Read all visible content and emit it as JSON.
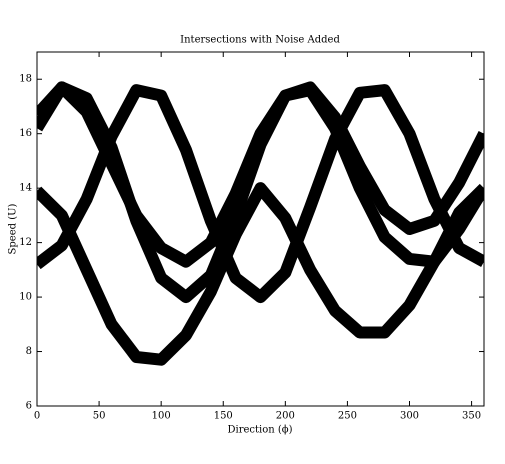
{
  "chart_data": {
    "type": "line",
    "title": "Intersections with Noise Added",
    "x_label": "Direction (ϕ)",
    "y_label": "Speed (U)",
    "x": [
      0,
      20,
      40,
      60,
      80,
      100,
      120,
      140,
      160,
      180,
      200,
      220,
      240,
      260,
      280,
      300,
      320,
      340,
      360
    ],
    "series": [
      {
        "color": "#000000",
        "values": [
          16.2,
          17.7,
          17.3,
          15.5,
          12.8,
          10.7,
          10,
          10.8,
          13,
          15.6,
          17.4,
          17.7,
          16.6,
          14.8,
          13.2,
          12.5,
          12.8,
          14.2,
          16
        ]
      },
      {
        "color": "#000000",
        "values": [
          11.2,
          11.9,
          13.6,
          15.9,
          17.6,
          17.4,
          15.4,
          12.8,
          10.7,
          10,
          10.9,
          13.3,
          15.8,
          17.5,
          17.6,
          16,
          13.6,
          11.8,
          11.3
        ]
      },
      {
        "color": "#000000",
        "values": [
          13.9,
          13,
          11,
          9,
          7.8,
          7.7,
          8.6,
          10.2,
          12.3,
          14,
          12.9,
          11,
          9.5,
          8.7,
          8.7,
          9.7,
          11.3,
          13.1,
          14
        ]
      },
      {
        "color": "#000000",
        "values": [
          16.7,
          17.7,
          16.8,
          14.9,
          13,
          11.8,
          11.3,
          12,
          13.8,
          16,
          17.4,
          17.6,
          16.2,
          14,
          12.2,
          11.4,
          11.3,
          12.5,
          14
        ]
      }
    ],
    "xlim": [
      0,
      360
    ],
    "xticks": [
      0,
      50,
      100,
      150,
      200,
      250,
      300,
      350
    ],
    "ylim": [
      6,
      19
    ],
    "yticks": [
      6,
      8,
      10,
      12,
      14,
      16,
      18
    ],
    "line_width": 12,
    "grid": false
  }
}
